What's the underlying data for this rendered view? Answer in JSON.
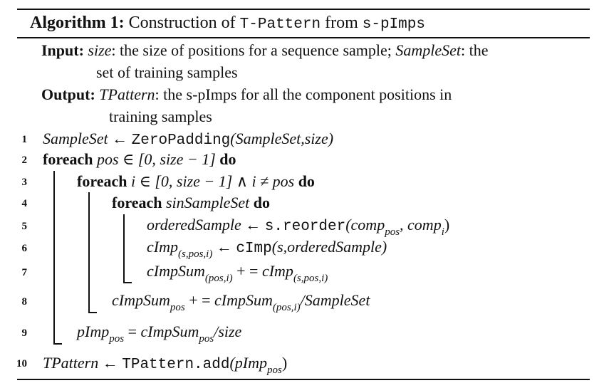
{
  "algorithm": {
    "label": "Algorithm 1:",
    "title_prefix": "Construction of",
    "title_code1": "T-Pattern",
    "title_mid": "from",
    "title_code2": "s-pImps"
  },
  "input": {
    "label": "Input:",
    "line1_var1": "size",
    "line1_text1": ": the size of positions for a sequence sample;",
    "line1_var2": "SampleSet",
    "line1_text2": ": the",
    "line2": "set of training samples"
  },
  "output": {
    "label": "Output:",
    "line1_var": "TPattern",
    "line1_text": ": the s-pImps for all the component positions in",
    "line2": "training samples"
  },
  "lines": [
    {
      "num": "1",
      "a": "SampleSet",
      "op": " ← ",
      "code": "ZeroPadding",
      "rest": "(SampleSet,size)"
    },
    {
      "num": "2",
      "kw": "foreach",
      "expr": " pos ∈ [0, size − 1] ",
      "kw2": "do"
    },
    {
      "num": "3",
      "kw": "foreach",
      "expr": " i ∈ [0, size − 1] ∧ i ≠ pos ",
      "kw2": "do"
    },
    {
      "num": "4",
      "kw": "foreach",
      "expr": " sinSampleSet ",
      "kw2": "do"
    },
    {
      "num": "5",
      "a": "orderedSample",
      "op": " ← ",
      "code": "s.reorder",
      "p1": "(comp",
      "s1": "pos",
      "p2": ", comp",
      "s2": "i",
      "p3": ")"
    },
    {
      "num": "6",
      "a": "cImp",
      "s1": "(s,pos,i)",
      "op": " ← ",
      "code": "cImp",
      "rest": "(s,orderedSample)"
    },
    {
      "num": "7",
      "a": "cImpSum",
      "s1": "(pos,i)",
      "op": " + = ",
      "b": "cImp",
      "s2": "(s,pos,i)"
    },
    {
      "num": "8",
      "a": "cImpSum",
      "s1": "pos",
      "op": " + = ",
      "b": "cImpSum",
      "s2": "(pos,i)",
      "rest": "/SampleSet"
    },
    {
      "num": "9",
      "a": "pImp",
      "s1": "pos",
      "op": " = ",
      "b": "cImpSum",
      "s2": "pos",
      "rest": "/size"
    },
    {
      "num": "10",
      "a": "TPattern",
      "op": " ← ",
      "code": "TPattern.add",
      "p1": "(pImp",
      "s1": "pos",
      "p3": ")"
    }
  ]
}
